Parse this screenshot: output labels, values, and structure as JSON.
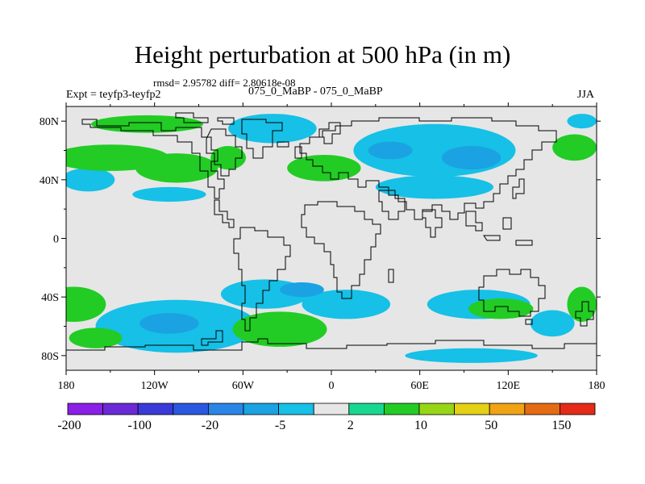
{
  "title": "Height perturbation at 500 hPa (in m)",
  "stats": "rmsd= 2.95782 diff= 2.80618e-08",
  "expt": "Expt = teyfp3-teyfp2",
  "subtitle": "075_0_MaBP - 075_0_MaBP",
  "season": "JJA",
  "chart_data": {
    "type": "heatmap",
    "title": "Height perturbation at 500 hPa (in m)",
    "xlabel": "",
    "ylabel": "",
    "xlim": [
      -180,
      180
    ],
    "ylim": [
      -90,
      90
    ],
    "x_ticks": [
      {
        "value": -180,
        "label": "180"
      },
      {
        "value": -120,
        "label": "120W"
      },
      {
        "value": -60,
        "label": "60W"
      },
      {
        "value": 0,
        "label": "0"
      },
      {
        "value": 60,
        "label": "60E"
      },
      {
        "value": 120,
        "label": "120E"
      },
      {
        "value": 180,
        "label": "180"
      }
    ],
    "y_ticks": [
      {
        "value": 80,
        "label": "80N"
      },
      {
        "value": 40,
        "label": "40N"
      },
      {
        "value": 0,
        "label": "0"
      },
      {
        "value": -40,
        "label": "40S"
      },
      {
        "value": -80,
        "label": "80S"
      }
    ],
    "colorbar": {
      "colors": [
        "#8a1fe6",
        "#6a2ad6",
        "#3a3ad8",
        "#2a58e0",
        "#2a86e6",
        "#1aa2e2",
        "#16c0e6",
        "#e6e6e6",
        "#18d890",
        "#22cc24",
        "#96d616",
        "#e4d014",
        "#f0a414",
        "#e46a14",
        "#e42a18"
      ],
      "boundaries": [
        -200,
        -150,
        -100,
        -50,
        -20,
        -10,
        -5,
        -2,
        2,
        5,
        10,
        20,
        50,
        100,
        150,
        200
      ],
      "labels": [
        {
          "value": -200,
          "label": "-200"
        },
        {
          "value": -100,
          "label": "-100"
        },
        {
          "value": -20,
          "label": "-20"
        },
        {
          "value": -5,
          "label": "-5"
        },
        {
          "value": 2,
          "label": "2"
        },
        {
          "value": 10,
          "label": "10"
        },
        {
          "value": 50,
          "label": "50"
        },
        {
          "value": 150,
          "label": "150"
        }
      ]
    },
    "regions": [
      {
        "name": "nh-green-band-west",
        "lon": -150,
        "lat": 55,
        "rlon": 40,
        "rlat": 9,
        "value": 7
      },
      {
        "name": "nh-green-band-central",
        "lon": -105,
        "lat": 48,
        "rlon": 28,
        "rlat": 10,
        "value": 7
      },
      {
        "name": "nh-green-arctic-north",
        "lon": -125,
        "lat": 78,
        "rlon": 38,
        "rlat": 6,
        "value": 6
      },
      {
        "name": "nh-green-greenland",
        "lon": -70,
        "lat": 55,
        "rlon": 12,
        "rlat": 8,
        "value": 6
      },
      {
        "name": "nh-green-europe",
        "lon": -5,
        "lat": 48,
        "rlon": 25,
        "rlat": 9,
        "value": 6
      },
      {
        "name": "nh-green-northeast-pacific",
        "lon": 165,
        "lat": 62,
        "rlon": 15,
        "rlat": 9,
        "value": 6
      },
      {
        "name": "nh-cyan-west",
        "lon": -165,
        "lat": 40,
        "rlon": 18,
        "rlat": 8,
        "value": -4
      },
      {
        "name": "nh-cyan-southwest",
        "lon": -110,
        "lat": 30,
        "rlon": 25,
        "rlat": 5,
        "value": -4
      },
      {
        "name": "nh-cyan-north-atlantic",
        "lon": -40,
        "lat": 75,
        "rlon": 30,
        "rlat": 10,
        "value": -4
      },
      {
        "name": "nh-cyan-eurasia",
        "lon": 70,
        "lat": 60,
        "rlon": 55,
        "rlat": 18,
        "value": -5
      },
      {
        "name": "nh-cyan-asia-south",
        "lon": 70,
        "lat": 35,
        "rlon": 40,
        "rlat": 8,
        "value": -4
      },
      {
        "name": "nh-blue-siberia",
        "lon": 95,
        "lat": 55,
        "rlon": 20,
        "rlat": 8,
        "value": -8
      },
      {
        "name": "nh-blue-eurasia-west",
        "lon": 40,
        "lat": 60,
        "rlon": 15,
        "rlat": 6,
        "value": -8
      },
      {
        "name": "nh-cyan-atlantic-east",
        "lon": 170,
        "lat": 80,
        "rlon": 10,
        "rlat": 5,
        "value": -4
      },
      {
        "name": "sh-cyan-south-pacific",
        "lon": -105,
        "lat": -60,
        "rlon": 55,
        "rlat": 18,
        "value": -5
      },
      {
        "name": "sh-blue-south-pacific",
        "lon": -110,
        "lat": -58,
        "rlon": 20,
        "rlat": 7,
        "value": -10
      },
      {
        "name": "sh-cyan-south-america",
        "lon": -45,
        "lat": -38,
        "rlon": 30,
        "rlat": 10,
        "value": -4
      },
      {
        "name": "sh-cyan-south-atlantic",
        "lon": 10,
        "lat": -45,
        "rlon": 30,
        "rlat": 10,
        "value": -4
      },
      {
        "name": "sh-blue-atlantic",
        "lon": -20,
        "lat": -35,
        "rlon": 15,
        "rlat": 5,
        "value": -8
      },
      {
        "name": "sh-green-south-atlantic",
        "lon": -35,
        "lat": -62,
        "rlon": 32,
        "rlat": 12,
        "value": 6
      },
      {
        "name": "sh-green-west",
        "lon": -175,
        "lat": -45,
        "rlon": 22,
        "rlat": 12,
        "value": 6
      },
      {
        "name": "sh-green-southwest",
        "lon": -160,
        "lat": -68,
        "rlon": 18,
        "rlat": 7,
        "value": 6
      },
      {
        "name": "sh-cyan-indian",
        "lon": 100,
        "lat": -45,
        "rlon": 35,
        "rlat": 10,
        "value": -4
      },
      {
        "name": "sh-green-australia",
        "lon": 115,
        "lat": -48,
        "rlon": 22,
        "rlat": 7,
        "value": 6
      },
      {
        "name": "sh-cyan-tasman",
        "lon": 150,
        "lat": -58,
        "rlon": 15,
        "rlat": 9,
        "value": -4
      },
      {
        "name": "sh-cyan-antarctic",
        "lon": 95,
        "lat": -80,
        "rlon": 45,
        "rlat": 5,
        "value": -4
      },
      {
        "name": "sh-green-far-east",
        "lon": 170,
        "lat": -45,
        "rlon": 10,
        "rlat": 12,
        "value": 6
      }
    ]
  }
}
